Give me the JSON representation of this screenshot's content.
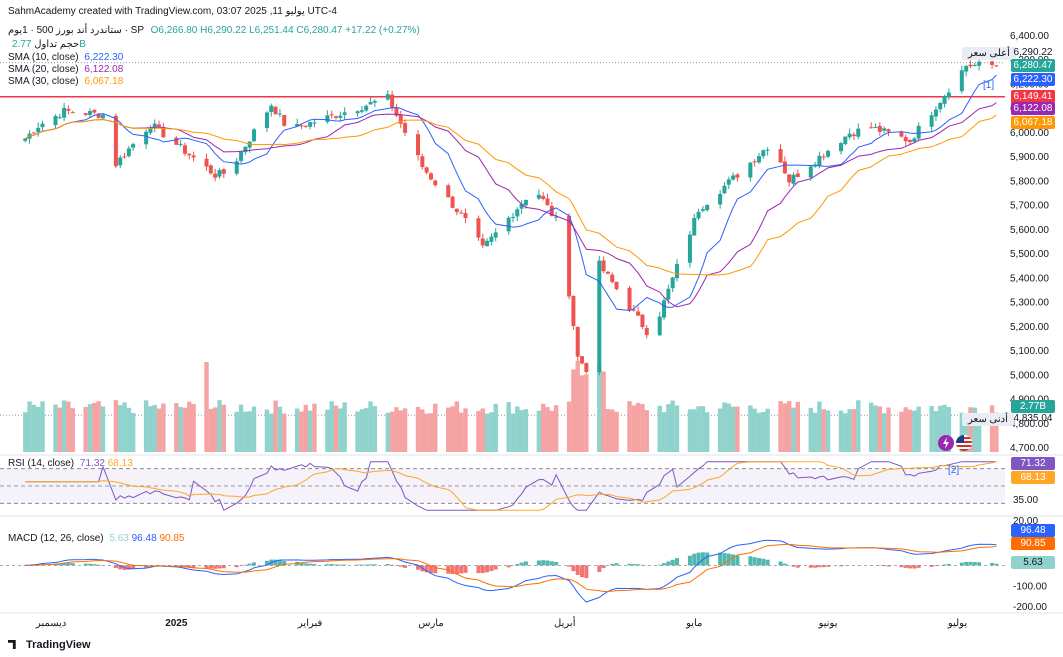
{
  "header": {
    "credit": "SahmAcademy created with TradingView.com, 03:07 2025 ,11 يوليو UTC-4",
    "symbol_line": "ستاندرد أند بورز 500 · 1يوم · SP",
    "o": "O6,266.80",
    "h": "H6,290.22",
    "l": "L6,251.44",
    "c": "C6,280.47",
    "chg": "+17.22 (+0.27%)",
    "volume_label": "حجم تداول",
    "volume_value": "2.77B",
    "sma10_label": "SMA (10, close)",
    "sma10_value": "6,222.30",
    "sma20_label": "SMA (20, close)",
    "sma20_value": "6,122.08",
    "sma30_label": "SMA (30, close)",
    "sma30_value": "6,067.18",
    "rsi_label": "RSI (14, close)",
    "rsi_value": "71.32",
    "rsi_ma_value": "68.13",
    "macd_label": "MACD (12, 26, close)",
    "macd_hist": "5.63",
    "macd_line": "96.48",
    "macd_signal": "90.85"
  },
  "annotations": {
    "high_label": "أعلى سعر",
    "high_value": "6,290.22",
    "low_label": "أدنى سعر",
    "low_value": "4,835.04",
    "bracket1": "[1]",
    "bracket2": "[2]"
  },
  "price_tags": {
    "last": "6,280.47",
    "sma10": "6,222.30",
    "hline": "6,149.41",
    "sma20": "6,122.08",
    "sma30": "6,067.18",
    "volume": "2.77B",
    "rsi": "71.32",
    "rsi_ma": "68.13",
    "macd_line": "96.48",
    "macd_signal": "90.85",
    "macd_hist": "5.63"
  },
  "colors": {
    "up": "#26a69a",
    "down": "#ef5350",
    "up_vol": "#8fd3cc",
    "down_vol": "#f5a3a3",
    "sma10": "#2962ff",
    "sma20": "#9c27b0",
    "sma30": "#ff9800",
    "hline": "#f23645",
    "rsi": "#7e57c2",
    "rsi_ma": "#ffa726",
    "macd": "#2962ff",
    "signal": "#ff6d00",
    "tag_last": "#26a69a"
  },
  "brand": "TradingView",
  "chart_data": [
    {
      "type": "candlestick",
      "title": "ستاندرد أند بورز 500 · 1يوم · SP",
      "y_ticks": [
        "6,400.00",
        "6,300.00",
        "6,200.00",
        "6,100.00",
        "6,000.00",
        "5,900.00",
        "5,800.00",
        "5,700.00",
        "5,600.00",
        "5,500.00",
        "5,400.00",
        "5,300.00",
        "5,200.00",
        "5,100.00",
        "5,000.00",
        "4,900.00",
        "4,800.00",
        "4,700.00"
      ],
      "y_tick_values": [
        6400,
        6300,
        6200,
        6100,
        6000,
        5900,
        5800,
        5700,
        5600,
        5500,
        5400,
        5300,
        5200,
        5100,
        5000,
        4900,
        4800,
        4700
      ],
      "x_ticks": [
        "ديسمبر",
        "2025",
        "فبراير",
        "مارس",
        "أبريل",
        "مايو",
        "يونيو",
        "يوليو"
      ],
      "horizontal_line": 6149.41,
      "key_points": [
        {
          "x": "Nov 25",
          "y": 5960
        },
        {
          "x": "Nov 29",
          "y": 6030
        },
        {
          "x": "Dec 6",
          "y": 6090
        },
        {
          "x": "Dec 16",
          "y": 6074
        },
        {
          "x": "Dec 18",
          "y": 5872
        },
        {
          "x": "Dec 26",
          "y": 6037
        },
        {
          "x": "Jan 10",
          "y": 5827
        },
        {
          "x": "Jan 13",
          "y": 5836
        },
        {
          "x": "Jan 23",
          "y": 6118
        },
        {
          "x": "Jan 27",
          "y": 6012
        },
        {
          "x": "Feb 19",
          "y": 6144
        },
        {
          "x": "Feb 27",
          "y": 5861
        },
        {
          "x": "Mar 10",
          "y": 5614
        },
        {
          "x": "Mar 13",
          "y": 5521
        },
        {
          "x": "Mar 25",
          "y": 5776
        },
        {
          "x": "Mar 31",
          "y": 5611
        },
        {
          "x": "Apr 4",
          "y": 5074
        },
        {
          "x": "Apr 8",
          "y": 4982
        },
        {
          "x": "Apr 9",
          "y": 5456
        },
        {
          "x": "Apr 21",
          "y": 5158
        },
        {
          "x": "May 2",
          "y": 5686
        },
        {
          "x": "May 12",
          "y": 5844
        },
        {
          "x": "May 19",
          "y": 5963
        },
        {
          "x": "May 23",
          "y": 5803
        },
        {
          "x": "Jun 6",
          "y": 6000
        },
        {
          "x": "Jun 11",
          "y": 6022
        },
        {
          "x": "Jun 20",
          "y": 5968
        },
        {
          "x": "Jul 3",
          "y": 6279
        },
        {
          "x": "Jul 10",
          "y": 6280
        }
      ],
      "last": {
        "open": 6266.8,
        "high": 6290.22,
        "low": 6251.44,
        "close": 6280.47,
        "change": 17.22,
        "change_pct": 0.27
      },
      "series": [
        {
          "name": "SMA (10, close)",
          "last": 6222.3
        },
        {
          "name": "SMA (20, close)",
          "last": 6122.08
        },
        {
          "name": "SMA (30, close)",
          "last": 6067.18
        }
      ]
    },
    {
      "type": "bar",
      "title": "حجم تداول",
      "last": "2.77B"
    },
    {
      "type": "line",
      "title": "RSI (14, close)",
      "series": [
        {
          "name": "RSI",
          "last": 71.32
        },
        {
          "name": "MA",
          "last": 68.13
        }
      ],
      "y_ticks": [
        "35.00",
        "20.00"
      ],
      "levels": [
        70,
        50,
        30
      ]
    },
    {
      "type": "line",
      "title": "MACD (12, 26, close)",
      "series": [
        {
          "name": "MACD",
          "last": 96.48
        },
        {
          "name": "Signal",
          "last": 90.85
        },
        {
          "name": "Histogram",
          "last": 5.63
        }
      ],
      "y_ticks": [
        "-100.00",
        "-200.00"
      ]
    }
  ]
}
